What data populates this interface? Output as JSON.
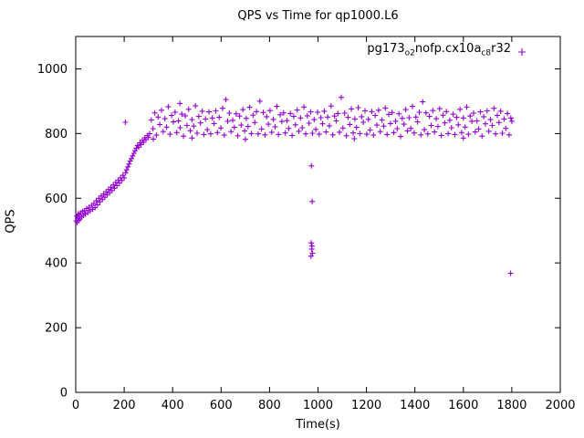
{
  "window": {
    "title": "QPS vs Time for qp1000.L6"
  },
  "legend": {
    "full": "pg173_o2nofp.cx10a_c8r32",
    "parts": {
      "prefix": "pg173",
      "sub1": "o2",
      "mid": "nofp.cx10a",
      "sub2": "c8",
      "suffix": "r32"
    }
  },
  "colors": {
    "series": "#9400D3",
    "axis": "#000000",
    "background": "#FFFFFF",
    "text": "#000000"
  },
  "chart_data": {
    "type": "scatter",
    "title": "QPS vs Time for qp1000.L6",
    "xlabel": "Time(s)",
    "ylabel": "QPS",
    "xlim": [
      0,
      2000
    ],
    "ylim": [
      0,
      1100
    ],
    "xticks": [
      0,
      200,
      400,
      600,
      800,
      1000,
      1200,
      1400,
      1600,
      1800,
      2000
    ],
    "yticks": [
      0,
      200,
      400,
      600,
      800,
      1000
    ],
    "grid": false,
    "legend_position": "top-right-inside",
    "marker": "plus",
    "series": [
      {
        "name": "pg173_o2nofp.cx10a_c8r32",
        "color": "#9400D3",
        "points": [
          [
            2,
            530
          ],
          [
            4,
            545
          ],
          [
            6,
            525
          ],
          [
            8,
            538
          ],
          [
            10,
            552
          ],
          [
            12,
            532
          ],
          [
            15,
            548
          ],
          [
            18,
            536
          ],
          [
            20,
            555
          ],
          [
            24,
            542
          ],
          [
            28,
            560
          ],
          [
            32,
            547
          ],
          [
            36,
            562
          ],
          [
            40,
            551
          ],
          [
            45,
            568
          ],
          [
            50,
            556
          ],
          [
            55,
            572
          ],
          [
            60,
            561
          ],
          [
            65,
            578
          ],
          [
            70,
            566
          ],
          [
            75,
            584
          ],
          [
            80,
            571
          ],
          [
            85,
            592
          ],
          [
            90,
            580
          ],
          [
            95,
            600
          ],
          [
            100,
            589
          ],
          [
            105,
            607
          ],
          [
            110,
            596
          ],
          [
            115,
            613
          ],
          [
            120,
            603
          ],
          [
            125,
            620
          ],
          [
            130,
            610
          ],
          [
            135,
            627
          ],
          [
            140,
            617
          ],
          [
            145,
            634
          ],
          [
            150,
            624
          ],
          [
            155,
            641
          ],
          [
            160,
            631
          ],
          [
            165,
            649
          ],
          [
            170,
            639
          ],
          [
            175,
            656
          ],
          [
            180,
            647
          ],
          [
            185,
            663
          ],
          [
            190,
            655
          ],
          [
            195,
            671
          ],
          [
            200,
            663
          ],
          [
            205,
            835
          ],
          [
            206,
            679
          ],
          [
            210,
            688
          ],
          [
            215,
            697
          ],
          [
            220,
            706
          ],
          [
            225,
            715
          ],
          [
            230,
            723
          ],
          [
            235,
            731
          ],
          [
            240,
            739
          ],
          [
            245,
            747
          ],
          [
            250,
            755
          ],
          [
            255,
            763
          ],
          [
            260,
            758
          ],
          [
            265,
            771
          ],
          [
            270,
            766
          ],
          [
            275,
            779
          ],
          [
            280,
            773
          ],
          [
            285,
            787
          ],
          [
            290,
            781
          ],
          [
            295,
            794
          ],
          [
            300,
            788
          ],
          [
            305,
            800
          ],
          [
            312,
            842
          ],
          [
            319,
            815
          ],
          [
            326,
            864
          ],
          [
            333,
            795
          ],
          [
            340,
            851
          ],
          [
            347,
            828
          ],
          [
            354,
            872
          ],
          [
            361,
            806
          ],
          [
            368,
            846
          ],
          [
            375,
            820
          ],
          [
            382,
            883
          ],
          [
            389,
            798
          ],
          [
            396,
            856
          ],
          [
            403,
            836
          ],
          [
            410,
            866
          ],
          [
            417,
            803
          ],
          [
            424,
            839
          ],
          [
            431,
            818
          ],
          [
            438,
            860
          ],
          [
            445,
            792
          ],
          [
            452,
            855
          ],
          [
            459,
            825
          ],
          [
            466,
            875
          ],
          [
            473,
            809
          ],
          [
            480,
            843
          ],
          [
            487,
            823
          ],
          [
            494,
            886
          ],
          [
            501,
            801
          ],
          [
            508,
            853
          ],
          [
            515,
            833
          ],
          [
            522,
            869
          ],
          [
            529,
            797
          ],
          [
            536,
            845
          ],
          [
            543,
            812
          ],
          [
            550,
            867
          ],
          [
            557,
            799
          ],
          [
            564,
            848
          ],
          [
            571,
            831
          ],
          [
            578,
            870
          ],
          [
            585,
            803
          ],
          [
            592,
            850
          ],
          [
            599,
            817
          ],
          [
            606,
            878
          ],
          [
            613,
            795
          ],
          [
            620,
            905
          ],
          [
            627,
            838
          ],
          [
            634,
            863
          ],
          [
            641,
            806
          ],
          [
            648,
            841
          ],
          [
            655,
            819
          ],
          [
            662,
            861
          ],
          [
            669,
            793
          ],
          [
            676,
            854
          ],
          [
            683,
            826
          ],
          [
            690,
            874
          ],
          [
            697,
            808
          ],
          [
            704,
            847
          ],
          [
            711,
            822
          ],
          [
            718,
            881
          ],
          [
            725,
            800
          ],
          [
            732,
            857
          ],
          [
            739,
            834
          ],
          [
            746,
            868
          ],
          [
            753,
            799
          ],
          [
            760,
            900
          ],
          [
            767,
            814
          ],
          [
            774,
            865
          ],
          [
            781,
            796
          ],
          [
            788,
            852
          ],
          [
            795,
            829
          ],
          [
            802,
            871
          ],
          [
            809,
            804
          ],
          [
            816,
            844
          ],
          [
            823,
            821
          ],
          [
            830,
            884
          ],
          [
            837,
            797
          ],
          [
            844,
            858
          ],
          [
            851,
            837
          ],
          [
            858,
            864
          ],
          [
            865,
            802
          ],
          [
            872,
            840
          ],
          [
            879,
            816
          ],
          [
            886,
            862
          ],
          [
            893,
            794
          ],
          [
            900,
            853
          ],
          [
            907,
            827
          ],
          [
            914,
            873
          ],
          [
            921,
            807
          ],
          [
            928,
            848
          ],
          [
            935,
            818
          ],
          [
            942,
            882
          ],
          [
            949,
            799
          ],
          [
            956,
            855
          ],
          [
            963,
            832
          ],
          [
            970,
            867
          ],
          [
            977,
            801
          ],
          [
            984,
            843
          ],
          [
            991,
            813
          ],
          [
            998,
            866
          ],
          [
            1005,
            798
          ],
          [
            1012,
            849
          ],
          [
            1019,
            830
          ],
          [
            1026,
            869
          ],
          [
            1033,
            805
          ],
          [
            1040,
            851
          ],
          [
            1047,
            824
          ],
          [
            1054,
            885
          ],
          [
            1061,
            796
          ],
          [
            1068,
            854
          ],
          [
            1075,
            839
          ],
          [
            1082,
            862
          ],
          [
            1089,
            804
          ],
          [
            1096,
            912
          ],
          [
            1103,
            817
          ],
          [
            1110,
            863
          ],
          [
            1117,
            793
          ],
          [
            1124,
            850
          ],
          [
            1131,
            828
          ],
          [
            1138,
            876
          ],
          [
            1145,
            802
          ],
          [
            1152,
            845
          ],
          [
            1159,
            819
          ],
          [
            1166,
            880
          ],
          [
            1173,
            800
          ],
          [
            1180,
            852
          ],
          [
            1187,
            835
          ],
          [
            1194,
            870
          ],
          [
            1201,
            798
          ],
          [
            1208,
            844
          ],
          [
            1215,
            811
          ],
          [
            1222,
            868
          ],
          [
            1229,
            795
          ],
          [
            1236,
            856
          ],
          [
            1243,
            826
          ],
          [
            1250,
            872
          ],
          [
            1257,
            806
          ],
          [
            1264,
            842
          ],
          [
            1271,
            823
          ],
          [
            1278,
            879
          ],
          [
            1285,
            797
          ],
          [
            1292,
            859
          ],
          [
            1299,
            831
          ],
          [
            1306,
            865
          ],
          [
            1313,
            803
          ],
          [
            1320,
            838
          ],
          [
            1327,
            815
          ],
          [
            1334,
            861
          ],
          [
            1341,
            791
          ],
          [
            1348,
            847
          ],
          [
            1355,
            829
          ],
          [
            1362,
            874
          ],
          [
            1369,
            808
          ],
          [
            1376,
            849
          ],
          [
            1383,
            816
          ],
          [
            1390,
            884
          ],
          [
            1397,
            802
          ],
          [
            1404,
            851
          ],
          [
            1411,
            836
          ],
          [
            1418,
            866
          ],
          [
            1425,
            796
          ],
          [
            1432,
            898
          ],
          [
            1439,
            812
          ],
          [
            1446,
            864
          ],
          [
            1453,
            799
          ],
          [
            1460,
            853
          ],
          [
            1467,
            825
          ],
          [
            1474,
            871
          ],
          [
            1481,
            805
          ],
          [
            1488,
            846
          ],
          [
            1495,
            822
          ],
          [
            1502,
            877
          ],
          [
            1509,
            794
          ],
          [
            1516,
            857
          ],
          [
            1523,
            833
          ],
          [
            1530,
            868
          ],
          [
            1537,
            800
          ],
          [
            1544,
            841
          ],
          [
            1551,
            818
          ],
          [
            1558,
            860
          ],
          [
            1565,
            797
          ],
          [
            1572,
            850
          ],
          [
            1579,
            827
          ],
          [
            1586,
            875
          ],
          [
            1593,
            803
          ],
          [
            1600,
            848
          ],
          [
            1607,
            820
          ],
          [
            1614,
            882
          ],
          [
            1621,
            798
          ],
          [
            1628,
            854
          ],
          [
            1635,
            838
          ],
          [
            1642,
            863
          ],
          [
            1649,
            805
          ],
          [
            1656,
            839
          ],
          [
            1663,
            814
          ],
          [
            1670,
            867
          ],
          [
            1677,
            792
          ],
          [
            1684,
            852
          ],
          [
            1691,
            830
          ],
          [
            1698,
            870
          ],
          [
            1705,
            807
          ],
          [
            1712,
            843
          ],
          [
            1719,
            825
          ],
          [
            1726,
            878
          ],
          [
            1733,
            799
          ],
          [
            1740,
            856
          ],
          [
            1747,
            834
          ],
          [
            1754,
            869
          ],
          [
            1761,
            801
          ],
          [
            1768,
            845
          ],
          [
            1775,
            816
          ],
          [
            1782,
            862
          ],
          [
            1789,
            796
          ],
          [
            1796,
            848
          ],
          [
            1800,
            838
          ],
          [
            320,
            783
          ],
          [
            480,
            786
          ],
          [
            700,
            782
          ],
          [
            1150,
            784
          ],
          [
            1600,
            786
          ],
          [
            430,
            893
          ],
          [
            973,
            700
          ],
          [
            976,
            590
          ],
          [
            972,
            462
          ],
          [
            975,
            452
          ],
          [
            974,
            443
          ],
          [
            977,
            430
          ],
          [
            971,
            421
          ],
          [
            1795,
            368
          ]
        ]
      }
    ]
  }
}
